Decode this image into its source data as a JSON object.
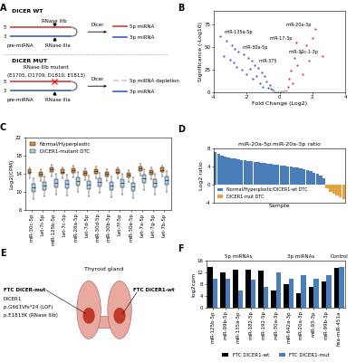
{
  "chart_data": [
    {
      "panel": "B",
      "type": "scatter",
      "xlabel": "Fold Change (Log2)",
      "ylabel": "Significance (-Log10)",
      "xlim": [
        -4,
        4
      ],
      "xticks": [
        -4,
        -2,
        0,
        2,
        4
      ],
      "ylim": [
        0,
        90
      ],
      "yticks": [
        0,
        25,
        50,
        75
      ],
      "grid": false,
      "series": [
        {
          "color": "#3b5fc0",
          "x": [
            -3.6,
            -3.2,
            -2.9,
            -2.7,
            -2.5,
            -3.4,
            -2.2,
            -1.9,
            -1.7,
            -2.8,
            -1.5,
            -1.3,
            -2.3,
            -1.1,
            -0.9,
            -1.6,
            -0.8,
            -1.2,
            -0.6,
            -2.0,
            -0.7,
            -1.0,
            -0.5,
            -1.4,
            -0.4,
            -2.6,
            -3.0,
            -1.8
          ],
          "y": [
            62,
            57,
            52,
            48,
            45,
            40,
            42,
            38,
            35,
            33,
            30,
            27,
            25,
            22,
            18,
            15,
            12,
            10,
            8,
            20,
            5,
            6,
            4,
            18,
            3,
            28,
            36,
            26
          ]
        },
        {
          "color": "#d63b3b",
          "x": [
            2.2,
            2.0,
            1.6,
            1.3,
            0.9,
            1.1,
            0.7,
            1.8,
            2.6,
            0.6,
            0.8,
            0.5,
            1.4,
            1.0
          ],
          "y": [
            70,
            60,
            52,
            44,
            38,
            30,
            24,
            35,
            40,
            15,
            10,
            6,
            20,
            55
          ]
        },
        {
          "color": "#aaaaaa",
          "x": [
            -0.3,
            0.2,
            -0.1,
            0.3,
            -0.2,
            0.1,
            0.4,
            -0.4
          ],
          "y": [
            1.2,
            0.8,
            1.5,
            2,
            0.5,
            1,
            1.8,
            2.2
          ]
        }
      ],
      "annotations": [
        {
          "text": "miR-135a-5p",
          "x": -3.6,
          "y": 62
        },
        {
          "text": "miR-30a-5p",
          "x": -2.5,
          "y": 45
        },
        {
          "text": "miR-375",
          "x": -1.5,
          "y": 30
        },
        {
          "text": "miR-20a-3p",
          "x": 2.2,
          "y": 70
        },
        {
          "text": "miR-17-3p",
          "x": 1.0,
          "y": 55
        },
        {
          "text": "miR-30c-1-3p",
          "x": 2.6,
          "y": 40
        }
      ]
    },
    {
      "panel": "C",
      "type": "box",
      "ylabel": "Log2(CPM)",
      "ylim": [
        6,
        22
      ],
      "yticks": [
        6,
        10,
        14,
        18,
        22
      ],
      "grid": false,
      "legend": "upper left",
      "categories": [
        "miR-30c-5p",
        "Let-7i-5p",
        "miR-125b-5p",
        "Let-7c-5p",
        "miR-26a-5p",
        "Let-7d-5p",
        "miR-30d-5p",
        "miR-30b-5p",
        "Let-7f-5p",
        "miR-30e-5p",
        "Let-7a-5p",
        "Let-7g-5p",
        "Let-7b-5p"
      ],
      "series": [
        {
          "name": "Normal/Hyperplastic",
          "color": "#d98c3a",
          "min": [
            13.0,
            12.5,
            13.5,
            13.0,
            13.3,
            12.7,
            13.1,
            12.5,
            13.0,
            12.3,
            13.7,
            12.9,
            13.4
          ],
          "q1": [
            14.0,
            13.5,
            14.5,
            14.0,
            14.3,
            13.7,
            14.1,
            13.5,
            14.0,
            13.3,
            14.7,
            13.9,
            14.4
          ],
          "median": [
            14.5,
            14.0,
            15.0,
            14.5,
            14.8,
            14.2,
            14.6,
            14.0,
            14.5,
            13.8,
            15.2,
            14.4,
            14.9
          ],
          "q3": [
            15.0,
            14.5,
            15.5,
            15.0,
            15.3,
            14.7,
            15.1,
            14.5,
            15.0,
            14.3,
            15.7,
            14.9,
            15.4
          ],
          "max": [
            15.5,
            15.0,
            16.0,
            15.5,
            15.8,
            15.2,
            15.6,
            15.0,
            15.5,
            14.8,
            16.2,
            15.4,
            15.9
          ]
        },
        {
          "name": "DICER1-mutant DTC",
          "color": "#a9cde6",
          "min": [
            8.5,
            9.0,
            9.5,
            9.3,
            10.0,
            9.1,
            9.8,
            8.9,
            9.5,
            8.7,
            10.5,
            9.5,
            10.1
          ],
          "q1": [
            10.0,
            10.5,
            11.0,
            10.8,
            11.5,
            10.6,
            11.3,
            10.4,
            11.0,
            10.2,
            12.0,
            11.0,
            11.6
          ],
          "median": [
            11.0,
            11.5,
            12.0,
            11.8,
            12.5,
            11.6,
            12.3,
            11.4,
            12.0,
            11.2,
            13.0,
            12.0,
            12.6
          ],
          "q3": [
            11.8,
            12.3,
            12.8,
            12.6,
            13.3,
            12.4,
            13.1,
            12.2,
            12.8,
            12.0,
            13.8,
            12.8,
            13.4
          ],
          "max": [
            13.0,
            13.5,
            14.0,
            13.8,
            14.5,
            13.6,
            14.3,
            13.4,
            14.0,
            13.2,
            15.0,
            14.0,
            14.6
          ]
        }
      ]
    },
    {
      "panel": "D",
      "type": "bar",
      "title": "miR-20a-5p:miR-20a-3p ratio",
      "xlabel": "Sample",
      "ylabel": "Log2 ratio",
      "ylim": [
        -4,
        8
      ],
      "yticks": [
        -4,
        0,
        4,
        8
      ],
      "grid": false,
      "legend": "lower left",
      "tick_labels": "y",
      "categories": [
        null,
        null,
        null,
        null,
        null,
        null,
        null,
        null,
        null,
        null,
        null,
        null,
        null,
        null,
        null,
        null,
        null,
        null,
        null,
        null,
        null,
        null,
        null,
        null,
        null,
        null,
        null,
        null,
        null,
        null,
        null,
        null,
        null,
        null,
        null,
        null,
        null,
        null,
        null,
        null
      ],
      "series": [
        {
          "name": "Normal/Hyperplastic/DICER1-wt DTC",
          "color": "#4a7ebb",
          "values": [
            7.2,
            6.8,
            6.5,
            6.3,
            6.1,
            5.9,
            5.8,
            5.6,
            5.5,
            5.4,
            5.3,
            5.2,
            5.1,
            5.0,
            4.9,
            4.8,
            4.7,
            4.6,
            4.5,
            4.4,
            4.3,
            4.2,
            4.1,
            4.0,
            3.9,
            3.8,
            3.6,
            3.4,
            3.2,
            3.0,
            2.7,
            2.4,
            2.0,
            1.5,
            null,
            null,
            null,
            null,
            null,
            null
          ]
        },
        {
          "name": "DICER1-mut DTC",
          "color": "#e6a23c",
          "values": [
            null,
            null,
            null,
            null,
            null,
            null,
            null,
            null,
            null,
            null,
            null,
            null,
            null,
            null,
            null,
            null,
            null,
            null,
            null,
            null,
            null,
            null,
            null,
            null,
            null,
            null,
            null,
            null,
            null,
            null,
            null,
            null,
            null,
            null,
            -0.8,
            -1.5,
            -2.0,
            -2.4,
            -2.8,
            -3.1
          ]
        }
      ]
    },
    {
      "panel": "F",
      "type": "bar",
      "ylabel": "log2cpm",
      "ylim": [
        0,
        16
      ],
      "yticks": [
        0,
        4,
        8,
        12,
        16
      ],
      "grid": false,
      "legend": "bottom",
      "groups": [
        {
          "name": "5p miRNAs",
          "categories": [
            "miR-125b-5p",
            "miR-99b-5p",
            "miR-135a-5p",
            "miR-182-5p",
            "miR-192-5p"
          ]
        },
        {
          "name": "3p miRNAs",
          "categories": [
            "miR-30a-3p",
            "miR-642a-3p",
            "miR-20a-3p",
            "miR-93-3p",
            "miR-99b-3p"
          ]
        },
        {
          "name": "Control",
          "categories": [
            "hsa-miR-451a"
          ]
        }
      ],
      "series": [
        {
          "name": "FTC DICER1-wt",
          "color": "#000000",
          "values": [
            14,
            12,
            13,
            13,
            12.5,
            6,
            8,
            5,
            7,
            9,
            13.5
          ]
        },
        {
          "name": "FTC DICER1-mut",
          "color": "#4a7ebb",
          "values": [
            10,
            10,
            6,
            9.5,
            7,
            12,
            10,
            11,
            10,
            11,
            14
          ]
        }
      ]
    }
  ],
  "diagrams": {
    "A": {
      "panel": "A",
      "rows": [
        {
          "title": "DICER WT",
          "precursor": "pre-miRNA",
          "end_5": "5'",
          "end_3": "3'",
          "site_top": [
            "RNase IIIb"
          ],
          "site_bottom": "RNase IIIa",
          "enzyme": "Dicer",
          "product_top": "5p miRNA",
          "product_bottom": "3p miRNA"
        },
        {
          "title": "DICER MUT",
          "precursor": "pre-miRNA",
          "end_5": "5'",
          "end_3": "3'",
          "site_top": [
            "RNase IIIb mutant",
            "(E1705, D1709, D1810, E1813)"
          ],
          "site_bottom": "RNase IIIa",
          "enzyme": "Dicer",
          "product_top": "5p miRNA depletion",
          "product_bottom": "3p miRNA"
        }
      ]
    },
    "E": {
      "panel": "E",
      "organ": "Thyroid gland",
      "left_tumor": "FTC DICER-mut",
      "left_details": [
        "DICER1",
        "p.G661Vfs*24 (LOF)",
        "p.E1813K (RNase IIIb)"
      ],
      "right_tumor": "FTC DICER1-wt"
    }
  }
}
